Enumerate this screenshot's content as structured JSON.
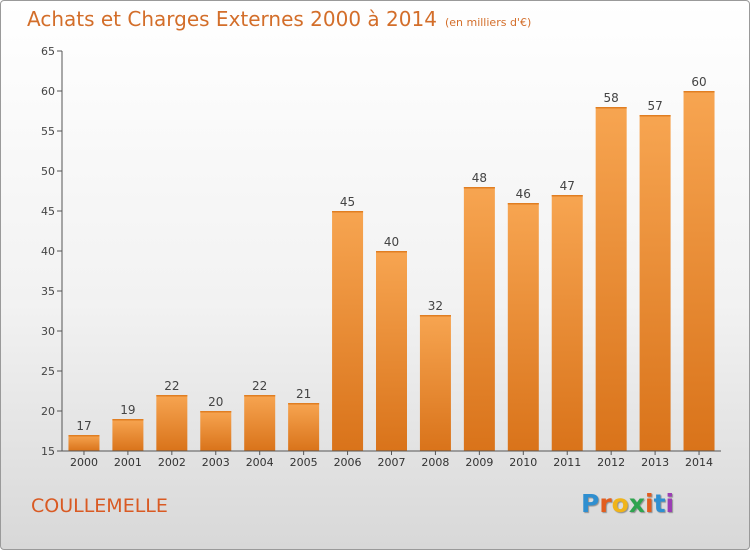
{
  "header": {
    "title": "Achats et Charges Externes 2000 à 2014",
    "unit": "(en milliers d'€)"
  },
  "footer": {
    "place": "COULLEMELLE",
    "logo_letters": [
      "P",
      "r",
      "o",
      "x",
      "i",
      "t",
      "i"
    ],
    "logo_colors": [
      "#2f8fd0",
      "#e25d1e",
      "#f0b41a",
      "#2fa44f",
      "#e25d1e",
      "#2f8fd0",
      "#9b3db4"
    ]
  },
  "colors": {
    "bar_light": "#f7a551",
    "bar_dark": "#d9731a",
    "axis": "#555555"
  },
  "chart_data": {
    "type": "bar",
    "title": "Achats et Charges Externes 2000 à 2014",
    "subtitle": "(en milliers d'€)",
    "categories": [
      "2000",
      "2001",
      "2002",
      "2003",
      "2004",
      "2005",
      "2006",
      "2007",
      "2008",
      "2009",
      "2010",
      "2011",
      "2012",
      "2013",
      "2014"
    ],
    "values": [
      17,
      19,
      22,
      20,
      22,
      21,
      45,
      40,
      32,
      48,
      46,
      47,
      58,
      57,
      60
    ],
    "ylim": [
      15,
      65
    ],
    "yticks": [
      15,
      20,
      25,
      30,
      35,
      40,
      45,
      50,
      55,
      60,
      65
    ],
    "grid": false,
    "xlabel": "",
    "ylabel": ""
  }
}
